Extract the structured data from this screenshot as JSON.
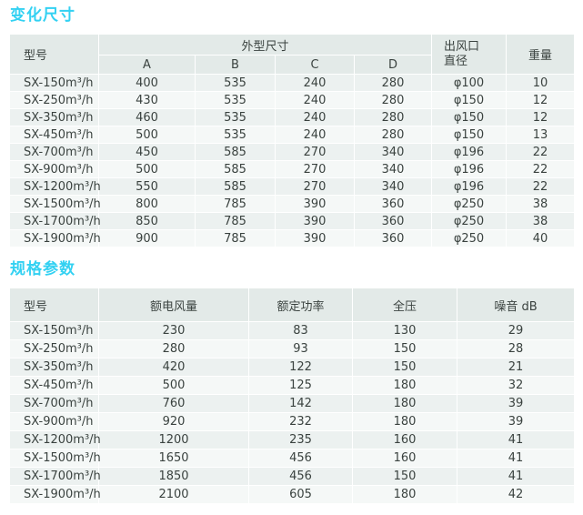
{
  "colors": {
    "title_accent": "#33d1f2",
    "header_bg": "#e3eae8",
    "row_odd_bg": "#ecf1f0",
    "row_even_bg": "#f5f8f7",
    "text": "#3a423f"
  },
  "section1": {
    "title": "变化尺寸",
    "table": {
      "col_model": "型号",
      "col_group": "外型尺寸",
      "sub_cols": [
        "A",
        "B",
        "C",
        "D"
      ],
      "col_outlet_line1": "出风口",
      "col_outlet_line2": "直径",
      "col_weight": "重量",
      "rows": [
        [
          "SX-150m³/h",
          "400",
          "535",
          "240",
          "280",
          "φ100",
          "10"
        ],
        [
          "SX-250m³/h",
          "430",
          "535",
          "240",
          "280",
          "φ150",
          "12"
        ],
        [
          "SX-350m³/h",
          "460",
          "535",
          "240",
          "280",
          "φ150",
          "12"
        ],
        [
          "SX-450m³/h",
          "500",
          "535",
          "240",
          "280",
          "φ150",
          "13"
        ],
        [
          "SX-700m³/h",
          "450",
          "585",
          "270",
          "340",
          "φ196",
          "22"
        ],
        [
          "SX-900m³/h",
          "500",
          "585",
          "270",
          "340",
          "φ196",
          "22"
        ],
        [
          "SX-1200m³/h",
          "550",
          "585",
          "270",
          "340",
          "φ196",
          "22"
        ],
        [
          "SX-1500m³/h",
          "800",
          "785",
          "390",
          "360",
          "φ250",
          "38"
        ],
        [
          "SX-1700m³/h",
          "850",
          "785",
          "390",
          "360",
          "φ250",
          "38"
        ],
        [
          "SX-1900m³/h",
          "900",
          "785",
          "390",
          "360",
          "φ250",
          "40"
        ]
      ]
    }
  },
  "section2": {
    "title": "规格参数",
    "table": {
      "headers": [
        "型号",
        "额电风量",
        "额定功率",
        "全压",
        "噪音 dB"
      ],
      "rows": [
        [
          "SX-150m³/h",
          "230",
          "83",
          "130",
          "29"
        ],
        [
          "SX-250m³/h",
          "280",
          "93",
          "150",
          "28"
        ],
        [
          "SX-350m³/h",
          "420",
          "122",
          "150",
          "21"
        ],
        [
          "SX-450m³/h",
          "500",
          "125",
          "180",
          "32"
        ],
        [
          "SX-700m³/h",
          "760",
          "142",
          "180",
          "39"
        ],
        [
          "SX-900m³/h",
          "920",
          "232",
          "180",
          "39"
        ],
        [
          "SX-1200m³/h",
          "1200",
          "235",
          "160",
          "41"
        ],
        [
          "SX-1500m³/h",
          "1650",
          "456",
          "160",
          "41"
        ],
        [
          "SX-1700m³/h",
          "1850",
          "456",
          "150",
          "41"
        ],
        [
          "SX-1900m³/h",
          "2100",
          "605",
          "180",
          "42"
        ]
      ]
    }
  }
}
